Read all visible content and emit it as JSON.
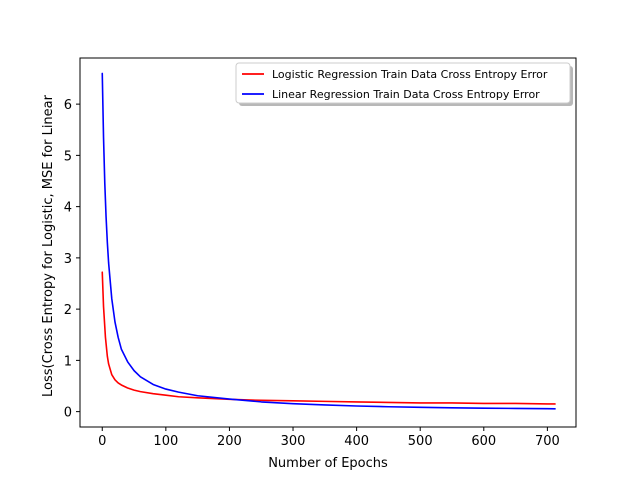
{
  "chart_data": {
    "type": "line",
    "title": "",
    "xlabel": "Number of Epochs",
    "ylabel": "Loss(Cross Entropy for Logistic, MSE for Linear",
    "xlim": [
      -35,
      745
    ],
    "ylim": [
      -0.3,
      6.9
    ],
    "xticks": [
      0,
      100,
      200,
      300,
      400,
      500,
      600,
      700
    ],
    "yticks": [
      0,
      1,
      2,
      3,
      4,
      5,
      6
    ],
    "grid": false,
    "legend_position": "top-right",
    "series": [
      {
        "name": "Logistic Regression Train Data Cross Entropy Error",
        "color": "#ff0000",
        "x": [
          0,
          2,
          5,
          8,
          10,
          15,
          20,
          25,
          30,
          40,
          50,
          60,
          80,
          100,
          120,
          150,
          200,
          250,
          300,
          350,
          400,
          450,
          500,
          550,
          600,
          650,
          700,
          712
        ],
        "y": [
          2.72,
          2.05,
          1.45,
          1.08,
          0.93,
          0.72,
          0.62,
          0.56,
          0.52,
          0.46,
          0.42,
          0.39,
          0.35,
          0.32,
          0.29,
          0.27,
          0.24,
          0.22,
          0.21,
          0.2,
          0.19,
          0.18,
          0.17,
          0.17,
          0.16,
          0.16,
          0.15,
          0.15
        ]
      },
      {
        "name": "Linear Regression Train Data Cross Entropy Error",
        "color": "#0000ff",
        "x": [
          0,
          2,
          4,
          6,
          8,
          10,
          15,
          20,
          25,
          30,
          40,
          50,
          60,
          80,
          100,
          120,
          150,
          200,
          250,
          300,
          350,
          400,
          450,
          500,
          550,
          600,
          650,
          700,
          712
        ],
        "y": [
          6.6,
          5.35,
          4.45,
          3.8,
          3.3,
          2.9,
          2.2,
          1.75,
          1.45,
          1.22,
          0.97,
          0.8,
          0.68,
          0.53,
          0.44,
          0.38,
          0.31,
          0.245,
          0.19,
          0.155,
          0.13,
          0.11,
          0.095,
          0.085,
          0.075,
          0.068,
          0.062,
          0.057,
          0.055
        ]
      }
    ]
  }
}
